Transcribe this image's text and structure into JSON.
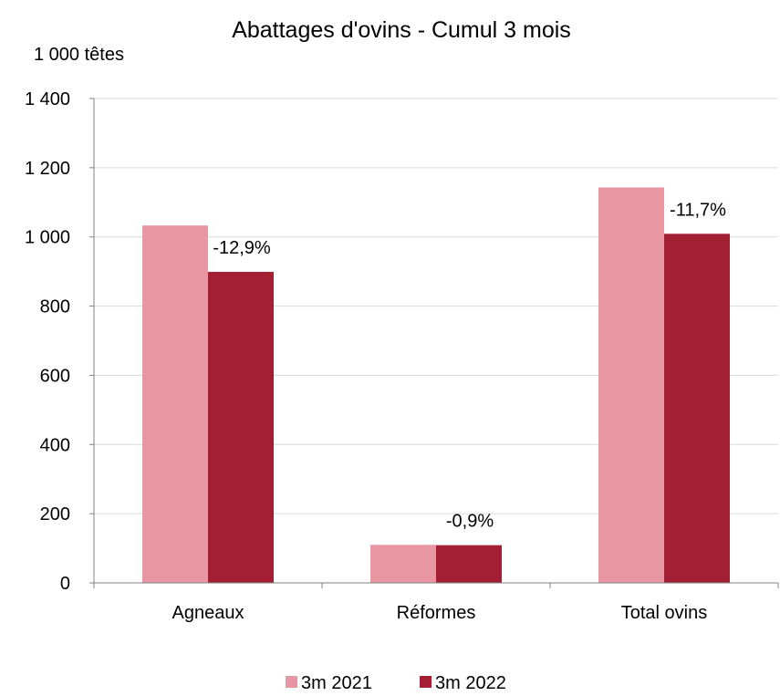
{
  "chart_data": {
    "type": "bar",
    "title": "Abattages d'ovins - Cumul 3 mois",
    "ylabel": "1 000 têtes",
    "xlabel": "",
    "categories": [
      "Agneaux",
      "Réformes",
      "Total ovins"
    ],
    "series": [
      {
        "name": "3m 2021",
        "values": [
          1033,
          110,
          1143
        ],
        "color": "#E896A2"
      },
      {
        "name": "3m 2022",
        "values": [
          899,
          109,
          1009
        ],
        "color": "#A32034"
      }
    ],
    "ylim": [
      0,
      1400
    ],
    "ytick_values": [
      0,
      200,
      400,
      600,
      800,
      1000,
      1200,
      1400
    ],
    "ytick_labels": [
      "0",
      "200",
      "400",
      "600",
      "800",
      "1 000",
      "1 200",
      "1 400"
    ],
    "data_labels": [
      "-12,9%",
      "-0,9%",
      "-11,7%"
    ],
    "grid": true,
    "legend_position": "bottom"
  }
}
